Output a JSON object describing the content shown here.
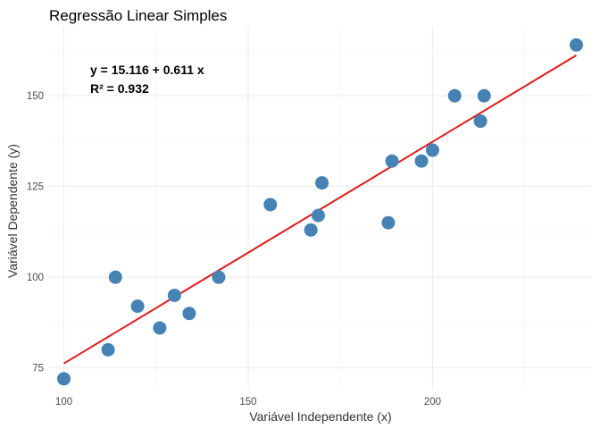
{
  "chart_data": {
    "type": "scatter",
    "title": "Regressão Linear Simples",
    "xlabel": "Variável Independente (x)",
    "ylabel": "Variável Dependente (y)",
    "xlim": [
      96,
      243
    ],
    "ylim": [
      69,
      169
    ],
    "x_ticks": [
      100,
      150,
      200
    ],
    "y_ticks": [
      75,
      100,
      125,
      150
    ],
    "grid": true,
    "points": {
      "x": [
        100,
        112,
        114,
        120,
        126,
        130,
        134,
        142,
        156,
        167,
        169,
        170,
        188,
        189,
        197,
        200,
        206,
        213,
        214,
        239
      ],
      "y": [
        72,
        80,
        100,
        92,
        86,
        95,
        90,
        100,
        120,
        113,
        117,
        126,
        115,
        132,
        132,
        135,
        150,
        143,
        150,
        164
      ]
    },
    "fit_line": {
      "intercept": 15.116,
      "slope": 0.611,
      "x_range": [
        100,
        239
      ]
    },
    "annotations": [
      "y = 15.116 + 0.611 x",
      "R² = 0.932"
    ],
    "colors": {
      "points": "#4682b4",
      "line": "#e31a1c"
    }
  }
}
